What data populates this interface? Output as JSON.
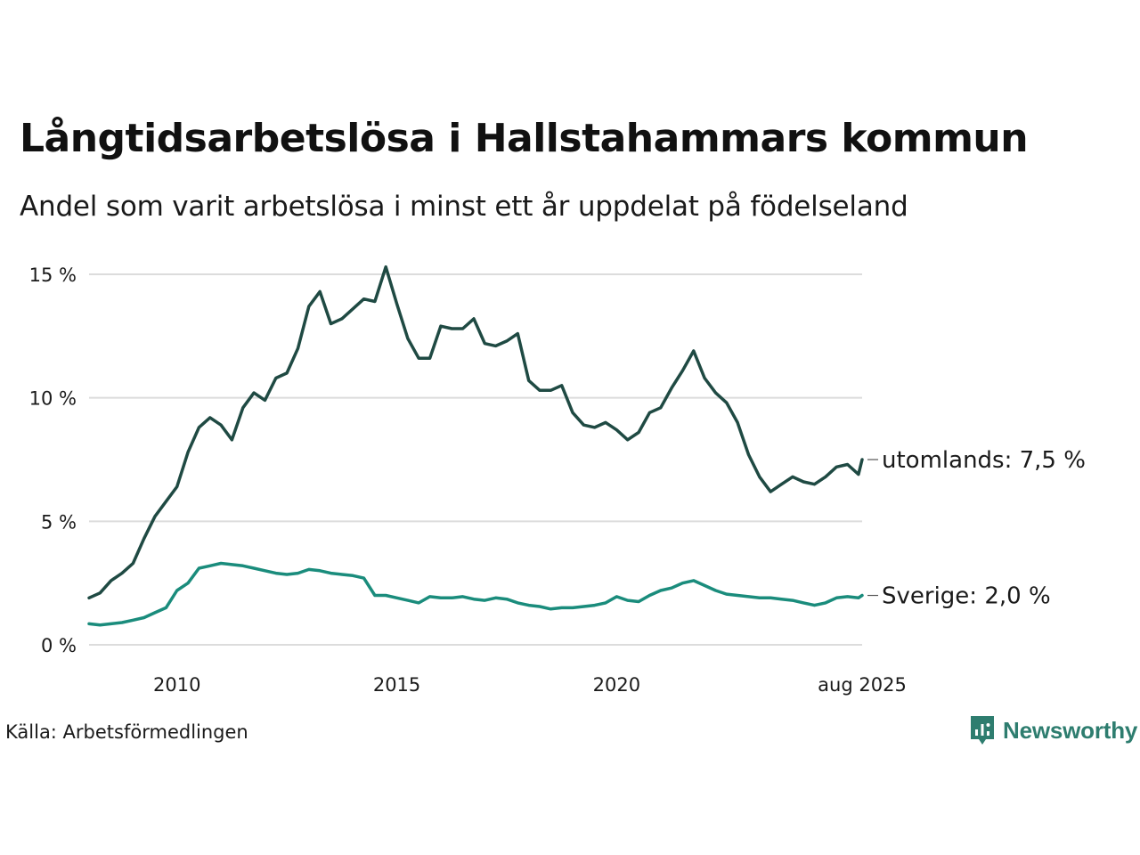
{
  "title": "Långtidsarbetslösa i Hallstahammars kommun",
  "subtitle": "Andel som varit arbetslösa i minst ett år uppdelat på födelseland",
  "source": "Källa: Arbetsförmedlingen",
  "brand": {
    "name": "Newsworthy",
    "icon": "newsworthy-logo-icon",
    "color": "#2e7d6f"
  },
  "colors": {
    "utomlands": "#1f4a43",
    "sverige": "#1a8c7c",
    "grid": "#dcdcdc"
  },
  "chart_data": {
    "type": "line",
    "title": "Långtidsarbetslösa i Hallstahammars kommun",
    "subtitle": "Andel som varit arbetslösa i minst ett år uppdelat på födelseland",
    "xlabel": "",
    "ylabel": "",
    "xlim": [
      2008.0,
      2025.583
    ],
    "ylim": [
      0,
      15
    ],
    "y_ticks": [
      0,
      5,
      10,
      15
    ],
    "y_tick_labels": [
      "0 %",
      "5 %",
      "10 %",
      "15 %"
    ],
    "x_ticks": [
      2010,
      2015,
      2020,
      2025.583
    ],
    "x_tick_labels": [
      "2010",
      "2015",
      "2020",
      "aug 2025"
    ],
    "grid": true,
    "legend": "direct labels at line ends",
    "series": [
      {
        "name": "utomlands",
        "end_label": "utomlands: 7,5 %",
        "color": "#1f4a43",
        "points": [
          [
            2008.0,
            1.9
          ],
          [
            2008.25,
            2.1
          ],
          [
            2008.5,
            2.6
          ],
          [
            2008.75,
            2.9
          ],
          [
            2009.0,
            3.3
          ],
          [
            2009.25,
            4.3
          ],
          [
            2009.5,
            5.2
          ],
          [
            2009.75,
            5.8
          ],
          [
            2010.0,
            6.4
          ],
          [
            2010.25,
            7.8
          ],
          [
            2010.5,
            8.8
          ],
          [
            2010.75,
            9.2
          ],
          [
            2011.0,
            8.9
          ],
          [
            2011.25,
            8.3
          ],
          [
            2011.5,
            9.6
          ],
          [
            2011.75,
            10.2
          ],
          [
            2012.0,
            9.9
          ],
          [
            2012.25,
            10.8
          ],
          [
            2012.5,
            11.0
          ],
          [
            2012.75,
            12.0
          ],
          [
            2013.0,
            13.7
          ],
          [
            2013.25,
            14.3
          ],
          [
            2013.5,
            13.0
          ],
          [
            2013.75,
            13.2
          ],
          [
            2014.0,
            13.6
          ],
          [
            2014.25,
            14.0
          ],
          [
            2014.5,
            13.9
          ],
          [
            2014.75,
            15.3
          ],
          [
            2015.0,
            13.8
          ],
          [
            2015.25,
            12.4
          ],
          [
            2015.5,
            11.6
          ],
          [
            2015.75,
            11.6
          ],
          [
            2016.0,
            12.9
          ],
          [
            2016.25,
            12.8
          ],
          [
            2016.5,
            12.8
          ],
          [
            2016.75,
            13.2
          ],
          [
            2017.0,
            12.2
          ],
          [
            2017.25,
            12.1
          ],
          [
            2017.5,
            12.3
          ],
          [
            2017.75,
            12.6
          ],
          [
            2018.0,
            10.7
          ],
          [
            2018.25,
            10.3
          ],
          [
            2018.5,
            10.3
          ],
          [
            2018.75,
            10.5
          ],
          [
            2019.0,
            9.4
          ],
          [
            2019.25,
            8.9
          ],
          [
            2019.5,
            8.8
          ],
          [
            2019.75,
            9.0
          ],
          [
            2020.0,
            8.7
          ],
          [
            2020.25,
            8.3
          ],
          [
            2020.5,
            8.6
          ],
          [
            2020.75,
            9.4
          ],
          [
            2021.0,
            9.6
          ],
          [
            2021.25,
            10.4
          ],
          [
            2021.5,
            11.1
          ],
          [
            2021.75,
            11.9
          ],
          [
            2022.0,
            10.8
          ],
          [
            2022.25,
            10.2
          ],
          [
            2022.5,
            9.8
          ],
          [
            2022.75,
            9.0
          ],
          [
            2023.0,
            7.7
          ],
          [
            2023.25,
            6.8
          ],
          [
            2023.5,
            6.2
          ],
          [
            2023.75,
            6.5
          ],
          [
            2024.0,
            6.8
          ],
          [
            2024.25,
            6.6
          ],
          [
            2024.5,
            6.5
          ],
          [
            2024.75,
            6.8
          ],
          [
            2025.0,
            7.2
          ],
          [
            2025.25,
            7.3
          ],
          [
            2025.5,
            6.9
          ],
          [
            2025.583,
            7.5
          ]
        ]
      },
      {
        "name": "Sverige",
        "end_label": "Sverige: 2,0 %",
        "color": "#1a8c7c",
        "points": [
          [
            2008.0,
            0.85
          ],
          [
            2008.25,
            0.8
          ],
          [
            2008.5,
            0.85
          ],
          [
            2008.75,
            0.9
          ],
          [
            2009.0,
            1.0
          ],
          [
            2009.25,
            1.1
          ],
          [
            2009.5,
            1.3
          ],
          [
            2009.75,
            1.5
          ],
          [
            2010.0,
            2.2
          ],
          [
            2010.25,
            2.5
          ],
          [
            2010.5,
            3.1
          ],
          [
            2010.75,
            3.2
          ],
          [
            2011.0,
            3.3
          ],
          [
            2011.25,
            3.25
          ],
          [
            2011.5,
            3.2
          ],
          [
            2011.75,
            3.1
          ],
          [
            2012.0,
            3.0
          ],
          [
            2012.25,
            2.9
          ],
          [
            2012.5,
            2.85
          ],
          [
            2012.75,
            2.9
          ],
          [
            2013.0,
            3.05
          ],
          [
            2013.25,
            3.0
          ],
          [
            2013.5,
            2.9
          ],
          [
            2013.75,
            2.85
          ],
          [
            2014.0,
            2.8
          ],
          [
            2014.25,
            2.7
          ],
          [
            2014.5,
            2.0
          ],
          [
            2014.75,
            2.0
          ],
          [
            2015.0,
            1.9
          ],
          [
            2015.25,
            1.8
          ],
          [
            2015.5,
            1.7
          ],
          [
            2015.75,
            1.95
          ],
          [
            2016.0,
            1.9
          ],
          [
            2016.25,
            1.9
          ],
          [
            2016.5,
            1.95
          ],
          [
            2016.75,
            1.85
          ],
          [
            2017.0,
            1.8
          ],
          [
            2017.25,
            1.9
          ],
          [
            2017.5,
            1.85
          ],
          [
            2017.75,
            1.7
          ],
          [
            2018.0,
            1.6
          ],
          [
            2018.25,
            1.55
          ],
          [
            2018.5,
            1.45
          ],
          [
            2018.75,
            1.5
          ],
          [
            2019.0,
            1.5
          ],
          [
            2019.25,
            1.55
          ],
          [
            2019.5,
            1.6
          ],
          [
            2019.75,
            1.7
          ],
          [
            2020.0,
            1.95
          ],
          [
            2020.25,
            1.8
          ],
          [
            2020.5,
            1.75
          ],
          [
            2020.75,
            2.0
          ],
          [
            2021.0,
            2.2
          ],
          [
            2021.25,
            2.3
          ],
          [
            2021.5,
            2.5
          ],
          [
            2021.75,
            2.6
          ],
          [
            2022.0,
            2.4
          ],
          [
            2022.25,
            2.2
          ],
          [
            2022.5,
            2.05
          ],
          [
            2022.75,
            2.0
          ],
          [
            2023.0,
            1.95
          ],
          [
            2023.25,
            1.9
          ],
          [
            2023.5,
            1.9
          ],
          [
            2023.75,
            1.85
          ],
          [
            2024.0,
            1.8
          ],
          [
            2024.25,
            1.7
          ],
          [
            2024.5,
            1.6
          ],
          [
            2024.75,
            1.7
          ],
          [
            2025.0,
            1.9
          ],
          [
            2025.25,
            1.95
          ],
          [
            2025.5,
            1.9
          ],
          [
            2025.583,
            2.0
          ]
        ]
      }
    ]
  }
}
